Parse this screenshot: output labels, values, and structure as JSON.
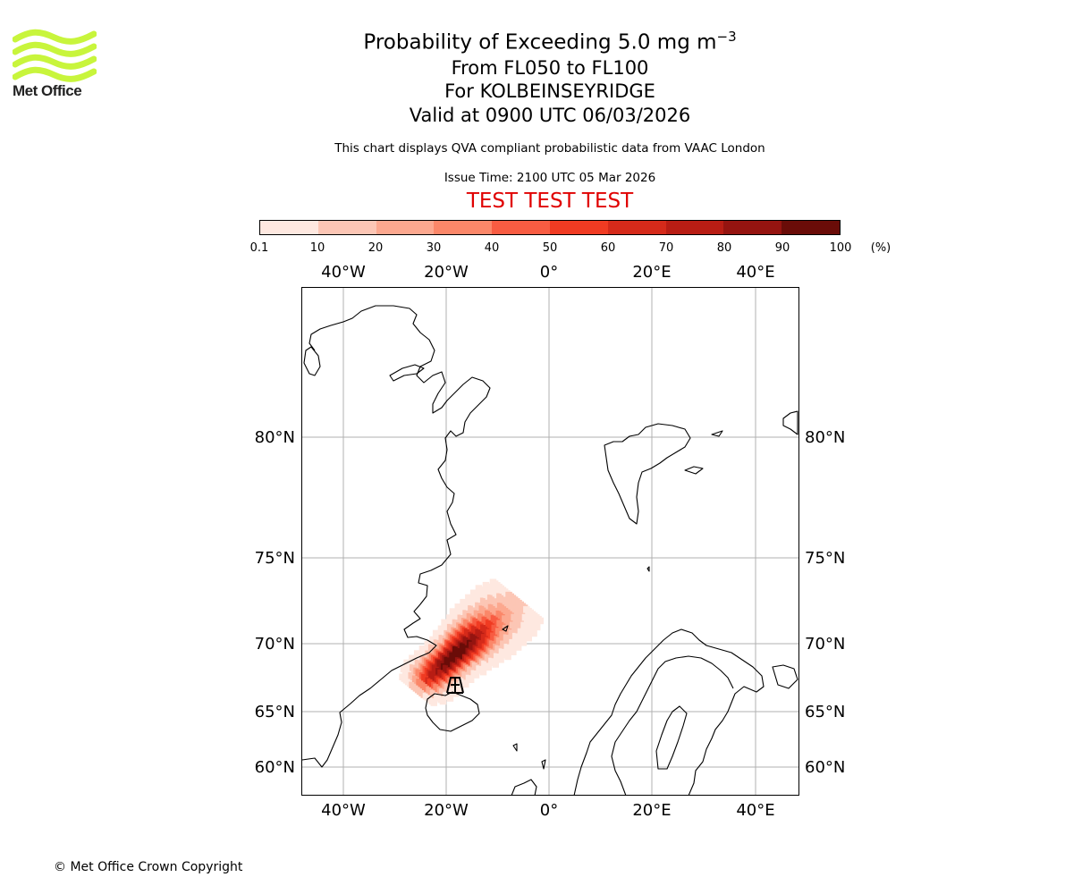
{
  "logo": {
    "brand": "Met Office",
    "color": "#c8f53c"
  },
  "title": {
    "main": "Probability of Exceeding 5.0 mg m",
    "main_sup": "−3",
    "levels": "From FL050 to FL100",
    "location": "For KOLBEINSEYRIDGE",
    "valid": "Valid at 0900 UTC 06/03/2026",
    "note": "This chart displays QVA compliant probabilistic data from VAAC London",
    "issue": "Issue Time: 2100 UTC 05 Mar 2026",
    "test": "TEST TEST TEST"
  },
  "colorbar": {
    "ticks": [
      "0.1",
      "10",
      "20",
      "30",
      "40",
      "50",
      "60",
      "70",
      "80",
      "90",
      "100"
    ],
    "unit": "(%)",
    "colors": [
      "#fee8e0",
      "#fcc6b5",
      "#fca88f",
      "#fb8769",
      "#f85c42",
      "#f03b22",
      "#d52a1a",
      "#b81d14",
      "#951410",
      "#6a0c08"
    ]
  },
  "map": {
    "lon_labels": [
      "40°W",
      "20°W",
      "0°",
      "20°E",
      "40°E"
    ],
    "lat_labels": [
      "80°N",
      "75°N",
      "70°N",
      "65°N",
      "60°N"
    ],
    "volcano_marker": "Kolbeinsey Ridge"
  },
  "chart_data": {
    "type": "heatmap",
    "title": "Probability of Exceeding 5.0 mg m−3",
    "units": "%",
    "lon_ticks": [
      -40,
      -20,
      0,
      20,
      40
    ],
    "lat_ticks": [
      60,
      65,
      70,
      75,
      80
    ],
    "plume": {
      "source_lon": -18.0,
      "source_lat": 67.2,
      "max_probability": 95,
      "extent_lon": [
        -22,
        -8
      ],
      "extent_lat": [
        67.0,
        71.3
      ]
    }
  },
  "footer": {
    "copyright": "© Met Office Crown Copyright"
  }
}
